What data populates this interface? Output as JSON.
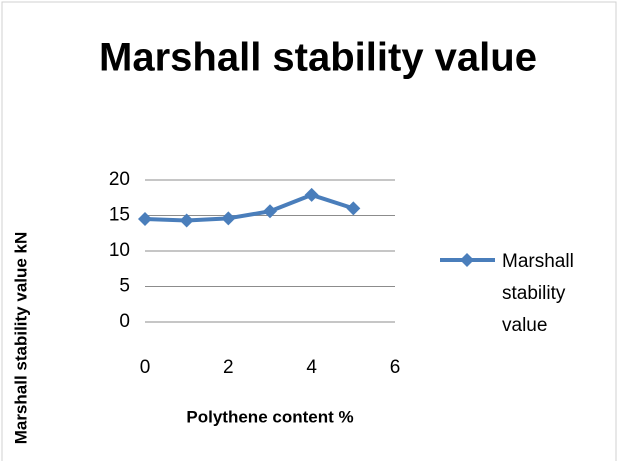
{
  "chart_data": {
    "type": "line",
    "title": "Marshall stability value",
    "x_label": "Polythene content %",
    "y_label": "Marshall stability value kN",
    "x": [
      0,
      1,
      2,
      3,
      4,
      5
    ],
    "series": [
      {
        "name": "Marshall stability value",
        "color": "#4a7ebb",
        "values": [
          14.5,
          14.3,
          14.6,
          15.6,
          17.9,
          16.0
        ]
      }
    ],
    "xlim": [
      0,
      6
    ],
    "xticks": [
      0,
      2,
      4,
      6
    ],
    "ylim": [
      0,
      20
    ],
    "yticks": [
      0,
      5,
      10,
      15,
      20
    ],
    "grid": true,
    "legend": "right"
  }
}
